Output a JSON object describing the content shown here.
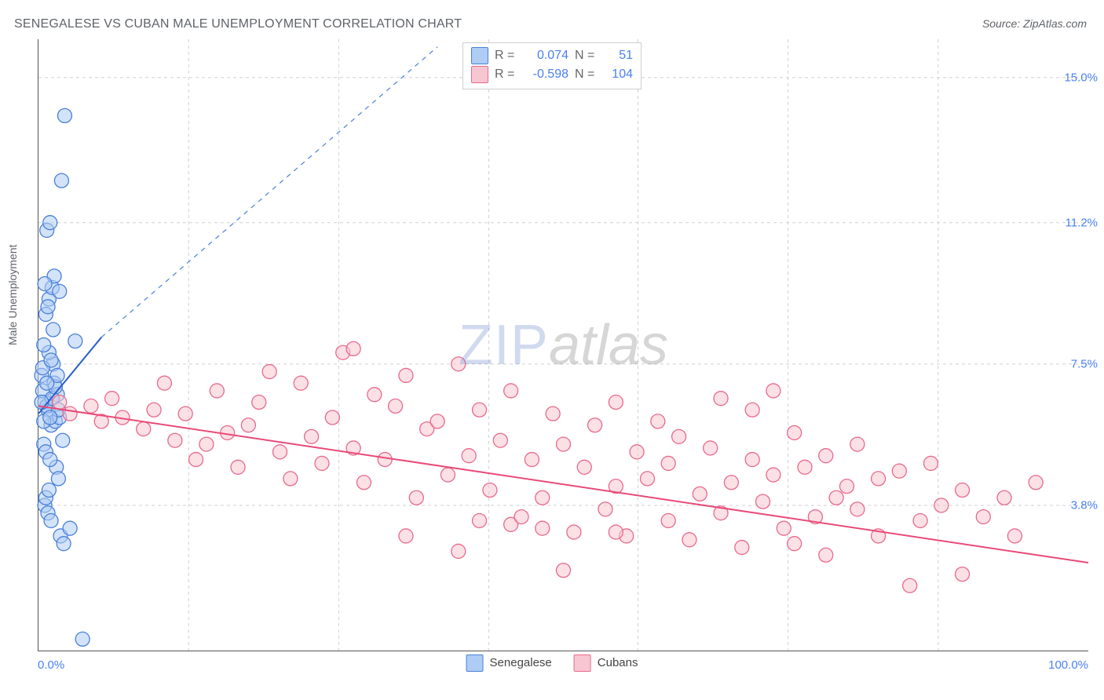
{
  "title": "SENEGALESE VS CUBAN MALE UNEMPLOYMENT CORRELATION CHART",
  "source_label": "Source: ZipAtlas.com",
  "ylabel": "Male Unemployment",
  "watermark": {
    "part1": "ZIP",
    "part2": "atlas"
  },
  "chart": {
    "type": "scatter",
    "background_color": "#ffffff",
    "grid_color": "#d0d0d0",
    "grid_dash": "4 4",
    "axis_color": "#555555",
    "xlim": [
      0,
      100
    ],
    "ylim": [
      0,
      16.0
    ],
    "xticks_lines": [
      14.3,
      28.6,
      42.9,
      57.1,
      71.4,
      85.7
    ],
    "xticks_labels": [
      {
        "value": 0,
        "label": "0.0%"
      },
      {
        "value": 100,
        "label": "100.0%"
      }
    ],
    "yticks": [
      {
        "value": 3.8,
        "label": "3.8%"
      },
      {
        "value": 7.5,
        "label": "7.5%"
      },
      {
        "value": 11.2,
        "label": "11.2%"
      },
      {
        "value": 15.0,
        "label": "15.0%"
      }
    ],
    "tick_label_color": "#4a80f0",
    "tick_fontsize": 15,
    "title_fontsize": 16,
    "title_color": "#5f6368",
    "label_fontsize": 14,
    "point_radius": 9,
    "point_stroke_width": 1.3,
    "trend_line_width": 2.0,
    "series": [
      {
        "name": "Senegalese",
        "fill_color": "#aeccf4",
        "stroke_color": "#4a80d8",
        "fill_opacity": 0.55,
        "R": "0.074",
        "N": "51",
        "trend": {
          "x1": 0,
          "y1": 6.2,
          "x2": 6,
          "y2": 8.2,
          "color": "#2a5fca"
        },
        "dashed_extension": {
          "x1": 6,
          "y1": 8.2,
          "x2": 38,
          "y2": 15.8,
          "color": "#4a80d8"
        },
        "points": [
          [
            2.5,
            14.0
          ],
          [
            0.6,
            6.5
          ],
          [
            0.9,
            6.3
          ],
          [
            1.2,
            5.9
          ],
          [
            1.5,
            7.0
          ],
          [
            1.8,
            6.7
          ],
          [
            0.5,
            5.4
          ],
          [
            2.2,
            12.3
          ],
          [
            1.0,
            9.2
          ],
          [
            0.7,
            8.8
          ],
          [
            1.3,
            9.5
          ],
          [
            3.5,
            8.1
          ],
          [
            0.8,
            11.0
          ],
          [
            1.1,
            11.2
          ],
          [
            1.4,
            7.5
          ],
          [
            1.6,
            6.0
          ],
          [
            0.4,
            6.8
          ],
          [
            0.3,
            7.2
          ],
          [
            2.0,
            6.1
          ],
          [
            2.3,
            5.5
          ],
          [
            1.7,
            4.8
          ],
          [
            1.9,
            4.5
          ],
          [
            2.1,
            3.0
          ],
          [
            2.4,
            2.8
          ],
          [
            3.0,
            3.2
          ],
          [
            0.6,
            3.8
          ],
          [
            0.9,
            3.6
          ],
          [
            1.2,
            3.4
          ],
          [
            0.5,
            6.0
          ],
          [
            0.8,
            6.4
          ],
          [
            1.0,
            7.8
          ],
          [
            1.5,
            9.8
          ],
          [
            4.2,
            0.3
          ],
          [
            0.7,
            5.2
          ],
          [
            1.1,
            5.0
          ],
          [
            0.4,
            7.4
          ],
          [
            1.3,
            6.6
          ],
          [
            0.9,
            9.0
          ],
          [
            1.6,
            6.9
          ],
          [
            0.6,
            9.6
          ],
          [
            2.0,
            9.4
          ],
          [
            1.8,
            7.2
          ],
          [
            0.5,
            8.0
          ],
          [
            1.4,
            8.4
          ],
          [
            0.7,
            4.0
          ],
          [
            1.0,
            4.2
          ],
          [
            1.2,
            7.6
          ],
          [
            0.8,
            7.0
          ],
          [
            1.9,
            6.3
          ],
          [
            1.1,
            6.1
          ],
          [
            0.3,
            6.5
          ]
        ]
      },
      {
        "name": "Cubans",
        "fill_color": "#f7c6d2",
        "stroke_color": "#e86a8b",
        "fill_opacity": 0.55,
        "R": "-0.598",
        "N": "104",
        "trend": {
          "x1": 0,
          "y1": 6.4,
          "x2": 100,
          "y2": 2.3,
          "color": "#e84a76"
        },
        "points": [
          [
            2,
            6.5
          ],
          [
            3,
            6.2
          ],
          [
            5,
            6.4
          ],
          [
            6,
            6.0
          ],
          [
            7,
            6.6
          ],
          [
            8,
            6.1
          ],
          [
            10,
            5.8
          ],
          [
            11,
            6.3
          ],
          [
            12,
            7.0
          ],
          [
            13,
            5.5
          ],
          [
            14,
            6.2
          ],
          [
            15,
            5.0
          ],
          [
            16,
            5.4
          ],
          [
            17,
            6.8
          ],
          [
            18,
            5.7
          ],
          [
            19,
            4.8
          ],
          [
            20,
            5.9
          ],
          [
            21,
            6.5
          ],
          [
            22,
            7.3
          ],
          [
            23,
            5.2
          ],
          [
            24,
            4.5
          ],
          [
            25,
            7.0
          ],
          [
            26,
            5.6
          ],
          [
            27,
            4.9
          ],
          [
            28,
            6.1
          ],
          [
            29,
            7.8
          ],
          [
            30,
            7.9
          ],
          [
            30,
            5.3
          ],
          [
            31,
            4.4
          ],
          [
            32,
            6.7
          ],
          [
            33,
            5.0
          ],
          [
            34,
            6.4
          ],
          [
            35,
            7.2
          ],
          [
            35,
            3.0
          ],
          [
            36,
            4.0
          ],
          [
            37,
            5.8
          ],
          [
            38,
            6.0
          ],
          [
            39,
            4.6
          ],
          [
            40,
            7.5
          ],
          [
            40,
            2.6
          ],
          [
            41,
            5.1
          ],
          [
            42,
            6.3
          ],
          [
            43,
            4.2
          ],
          [
            44,
            5.5
          ],
          [
            45,
            6.8
          ],
          [
            45,
            3.3
          ],
          [
            46,
            3.5
          ],
          [
            47,
            5.0
          ],
          [
            48,
            4.0
          ],
          [
            49,
            6.2
          ],
          [
            50,
            5.4
          ],
          [
            50,
            2.1
          ],
          [
            51,
            3.1
          ],
          [
            52,
            4.8
          ],
          [
            53,
            5.9
          ],
          [
            54,
            3.7
          ],
          [
            55,
            6.5
          ],
          [
            55,
            4.3
          ],
          [
            56,
            3.0
          ],
          [
            57,
            5.2
          ],
          [
            58,
            4.5
          ],
          [
            59,
            6.0
          ],
          [
            60,
            3.4
          ],
          [
            60,
            4.9
          ],
          [
            61,
            5.6
          ],
          [
            62,
            2.9
          ],
          [
            63,
            4.1
          ],
          [
            64,
            5.3
          ],
          [
            65,
            3.6
          ],
          [
            65,
            6.6
          ],
          [
            66,
            4.4
          ],
          [
            67,
            2.7
          ],
          [
            68,
            5.0
          ],
          [
            69,
            3.9
          ],
          [
            70,
            4.6
          ],
          [
            70,
            6.8
          ],
          [
            71,
            3.2
          ],
          [
            72,
            2.8
          ],
          [
            73,
            4.8
          ],
          [
            74,
            3.5
          ],
          [
            75,
            5.1
          ],
          [
            75,
            2.5
          ],
          [
            76,
            4.0
          ],
          [
            77,
            4.3
          ],
          [
            78,
            3.7
          ],
          [
            80,
            3.0
          ],
          [
            80,
            4.5
          ],
          [
            82,
            4.7
          ],
          [
            83,
            1.7
          ],
          [
            84,
            3.4
          ],
          [
            85,
            4.9
          ],
          [
            86,
            3.8
          ],
          [
            88,
            2.0
          ],
          [
            88,
            4.2
          ],
          [
            90,
            3.5
          ],
          [
            92,
            4.0
          ],
          [
            93,
            3.0
          ],
          [
            95,
            4.4
          ],
          [
            68,
            6.3
          ],
          [
            72,
            5.7
          ],
          [
            78,
            5.4
          ],
          [
            55,
            3.1
          ],
          [
            48,
            3.2
          ],
          [
            42,
            3.4
          ]
        ]
      }
    ],
    "legend": {
      "items": [
        {
          "label": "Senegalese",
          "fill": "#aeccf4",
          "stroke": "#4a80d8"
        },
        {
          "label": "Cubans",
          "fill": "#f7c6d2",
          "stroke": "#e86a8b"
        }
      ]
    },
    "stats_box": {
      "border_color": "#cfcfcf",
      "bg": "#ffffff",
      "rows": [
        {
          "swatch_fill": "#aeccf4",
          "swatch_stroke": "#4a80d8",
          "r_label": "R =",
          "r_value": "0.074",
          "n_label": "N =",
          "n_value": "51"
        },
        {
          "swatch_fill": "#f7c6d2",
          "swatch_stroke": "#e86a8b",
          "r_label": "R =",
          "r_value": "-0.598",
          "n_label": "N =",
          "n_value": "104"
        }
      ]
    }
  }
}
